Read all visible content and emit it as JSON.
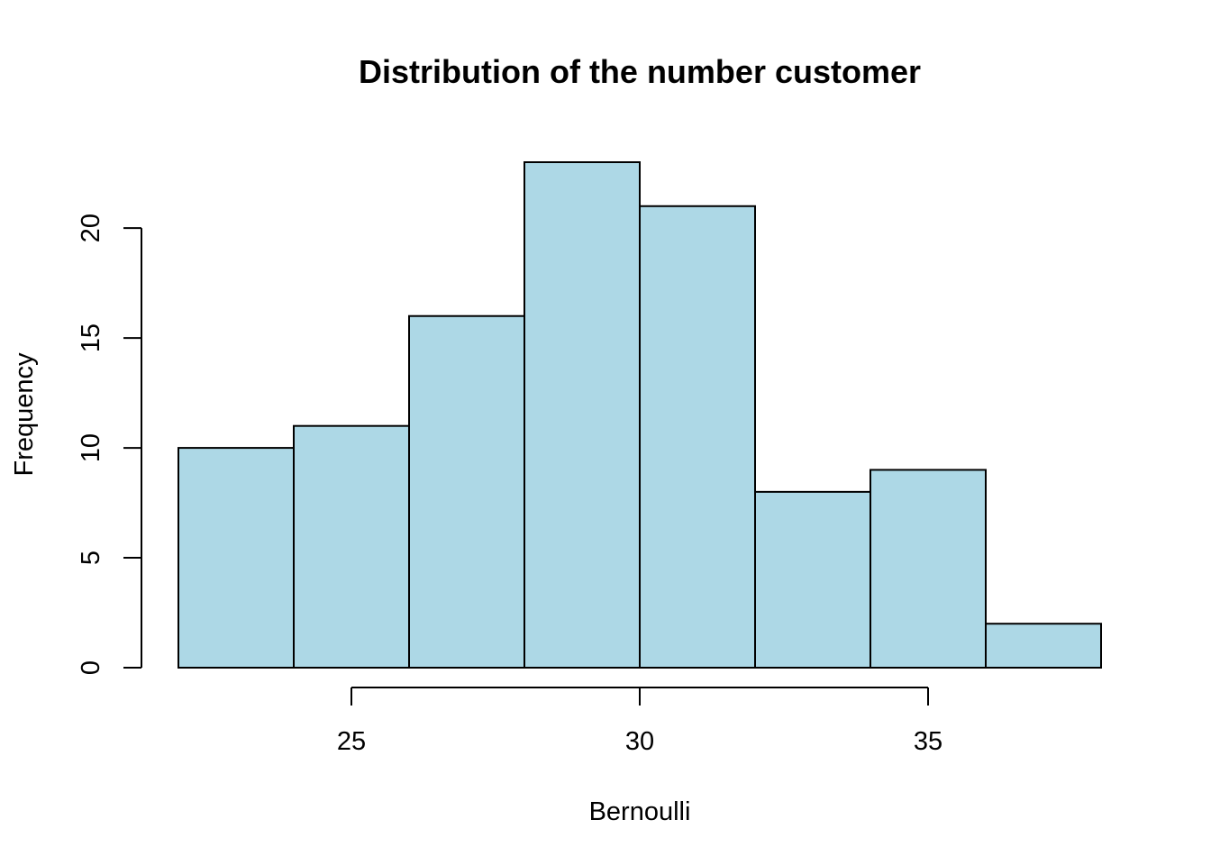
{
  "chart_data": {
    "type": "bar",
    "title": "Distribution of the number customer",
    "xlabel": "Bernoulli",
    "ylabel": "Frequency",
    "bins": [
      {
        "start": 22,
        "end": 24,
        "count": 10
      },
      {
        "start": 24,
        "end": 26,
        "count": 11
      },
      {
        "start": 26,
        "end": 28,
        "count": 16
      },
      {
        "start": 28,
        "end": 30,
        "count": 23
      },
      {
        "start": 30,
        "end": 32,
        "count": 21
      },
      {
        "start": 32,
        "end": 34,
        "count": 8
      },
      {
        "start": 34,
        "end": 36,
        "count": 9
      },
      {
        "start": 36,
        "end": 38,
        "count": 2
      }
    ],
    "x_ticks": [
      25,
      30,
      35
    ],
    "y_ticks": [
      0,
      5,
      10,
      15,
      20
    ],
    "xlim": [
      22,
      38
    ],
    "ylim": [
      0,
      23
    ],
    "bar_color": "#add8e6",
    "bar_edge_color": "#000000",
    "grid": false,
    "legend": "none"
  }
}
